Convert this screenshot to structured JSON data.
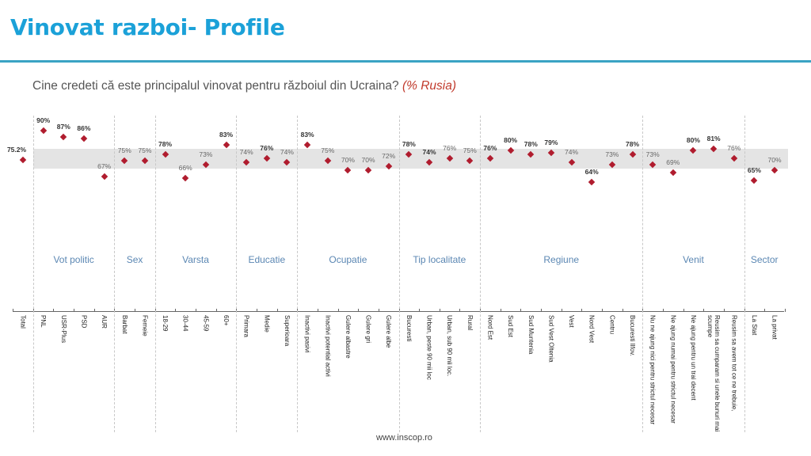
{
  "header": {
    "title": "Vinovat razboi- Profile",
    "question": "Cine credeti că este principalul  vinovat pentru războiul  din Ucraina?",
    "unit": "(% Rusia)"
  },
  "footer": {
    "url": "www.inscop.ro"
  },
  "colors": {
    "title": "#1ba1d8",
    "rule": "#3aa3c4",
    "marker": "#b01c2e",
    "band": "#e4e4e4",
    "group_label": "#5b87b3",
    "unit": "#c0392b"
  },
  "chart_data": {
    "type": "scatter",
    "title": "Vinovat razboi- Profile",
    "subtitle": "Cine credeti că este principalul vinovat pentru războiul din Ucraina? (% Rusia)",
    "xlabel": "",
    "ylabel": "% Rusia",
    "ylim": [
      60,
      92
    ],
    "grid": false,
    "reference_band": {
      "description": "grey band around total average",
      "approx_range": [
        72,
        82
      ]
    },
    "categories": [
      "Total",
      "PNL",
      "USR-Plus",
      "PSD",
      "AUR",
      "Barbat",
      "Femeie",
      "18-29",
      "30-44",
      "45-59",
      "60+",
      "Primara",
      "Medie",
      "Superioara",
      "Inactivi pasivi",
      "Inactivi potential activi",
      "Gulere albastre",
      "Gulere gri",
      "Gulere albe",
      "Bucuresti",
      "Urban, peste 90 mii loc",
      "Urban, sub 90 mii loc.",
      "Rural",
      "Nord Est",
      "Sud Est",
      "Sud Muntenia",
      "Sud Vest Oltenia",
      "Vest",
      "Nord Vest",
      "Centru",
      "Bucuresti Ilfov.",
      "Nu ne ajung nici pentru strictul necesar",
      "Ne ajung numai pentru strictul necesar",
      "Ne ajung pentru un trai decent",
      "Reusim sa cumparam si unele bunuri mai scumpe",
      "Reusim sa avem tot ce ne trebuie,",
      "La Stat",
      "La privat"
    ],
    "values": [
      75.2,
      90,
      87,
      86,
      67,
      75,
      75,
      78,
      66,
      73,
      83,
      74,
      76,
      74,
      83,
      75,
      70,
      70,
      72,
      78,
      74,
      76,
      75,
      76,
      80,
      78,
      79,
      74,
      64,
      73,
      78,
      73,
      69,
      80,
      81,
      76,
      65,
      70
    ],
    "value_labels": [
      "75.2%",
      "90%",
      "87%",
      "86%",
      "67%",
      "75%",
      "75%",
      "78%",
      "66%",
      "73%",
      "83%",
      "74%",
      "76%",
      "74%",
      "83%",
      "75%",
      "70%",
      "70%",
      "72%",
      "78%",
      "74%",
      "76%",
      "75%",
      "76%",
      "80%",
      "78%",
      "79%",
      "74%",
      "64%",
      "73%",
      "78%",
      "73%",
      "69%",
      "80%",
      "81%",
      "76%",
      "65%",
      "70%"
    ],
    "groups": [
      {
        "name": "Vot politic",
        "members": [
          "PNL",
          "USR-Plus",
          "PSD",
          "AUR"
        ]
      },
      {
        "name": "Sex",
        "members": [
          "Barbat",
          "Femeie"
        ]
      },
      {
        "name": "Varsta",
        "members": [
          "18-29",
          "30-44",
          "45-59",
          "60+"
        ]
      },
      {
        "name": "Educatie",
        "members": [
          "Primara",
          "Medie",
          "Superioara"
        ]
      },
      {
        "name": "Ocupatie",
        "members": [
          "Inactivi pasivi",
          "Inactivi potential activi",
          "Gulere albastre",
          "Gulere gri",
          "Gulere albe"
        ]
      },
      {
        "name": "Tip localitate",
        "members": [
          "Bucuresti",
          "Urban, peste 90 mii loc",
          "Urban, sub 90 mii loc.",
          "Rural"
        ]
      },
      {
        "name": "Regiune",
        "members": [
          "Nord Est",
          "Sud Est",
          "Sud Muntenia",
          "Sud Vest Oltenia",
          "Vest",
          "Nord Vest",
          "Centru",
          "Bucuresti Ilfov."
        ]
      },
      {
        "name": "Venit",
        "members": [
          "Nu ne ajung nici pentru strictul necesar",
          "Ne ajung numai pentru strictul necesar",
          "Ne ajung pentru un trai decent",
          "Reusim sa cumparam si unele bunuri mai scumpe",
          "Reusim sa avem tot ce ne trebuie,"
        ]
      },
      {
        "name": "Sector",
        "members": [
          "La Stat",
          "La privat"
        ]
      }
    ]
  }
}
